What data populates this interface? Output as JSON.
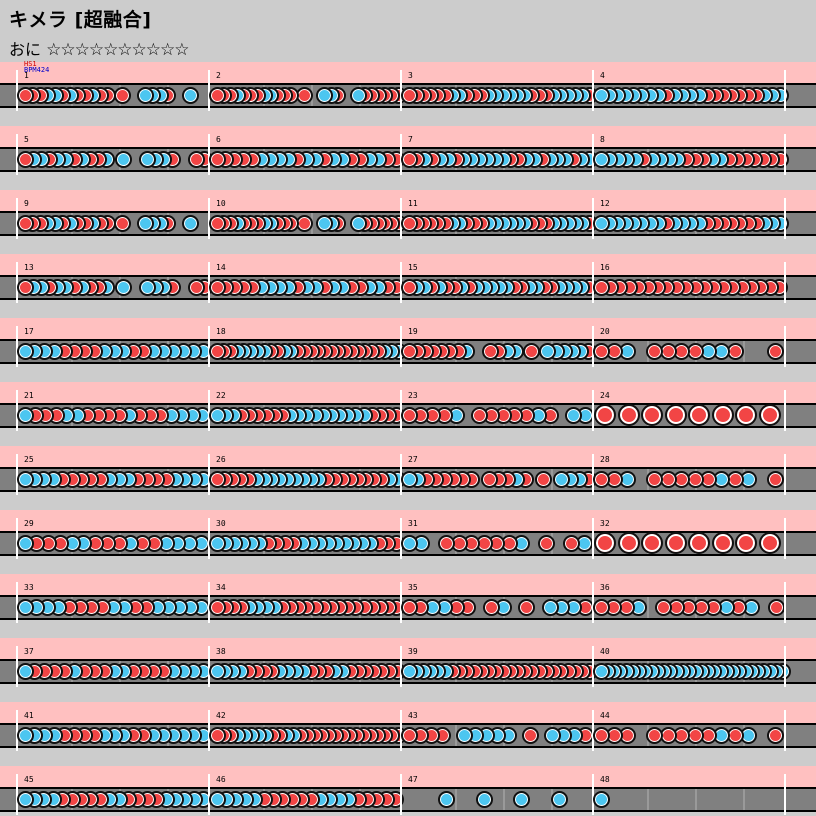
{
  "header": {
    "title": "キメラ [超融合]",
    "difficulty_label": "おに",
    "stars": "☆☆☆☆☆☆☆☆☆☆"
  },
  "chart_info": {
    "hs_label": "HS1",
    "bpm_label": "BPM424"
  },
  "chart_data": {
    "type": "taiko-chart",
    "measures_per_row": 4,
    "note_types": {
      "d": "don",
      "k": "ka",
      "D": "big-don",
      "K": "big-ka"
    },
    "colors": {
      "don": "#f24545",
      "ka": "#4cc6f0",
      "background": "#cccccc",
      "row": "#ffc0c0",
      "lane": "#808080",
      "bar_line": "#ffffff"
    },
    "measures": [
      {
        "n": "1",
        "notes": "dddkkdkddkdd_d__kkkd__k__"
      },
      {
        "n": "2",
        "notes": "dddkdddkkddd_d__kkd__kdddddd"
      },
      {
        "n": "3",
        "notes": "ddddddkkdddkkkkkkdddkkkkkd"
      },
      {
        "n": "4",
        "notes": "kkkkkkkkdkkkkdddddddkkk"
      },
      {
        "n": "5",
        "notes": "dkkdkkdkddk_k__kkkd__dd"
      },
      {
        "n": "6",
        "notes": "dddddkkkkdkkdkkddkkdd"
      },
      {
        "n": "7",
        "notes": "ddkdkkdkkkkkkddkkdkkkdkk"
      },
      {
        "n": "8",
        "notes": "kkkkkdkkkkdddkkddddddd"
      },
      {
        "n": "9",
        "notes": "dddkkdkddkdd_d__kkkd__k__"
      },
      {
        "n": "10",
        "notes": "dddkdddkkddd_d__kkd__kdddddd"
      },
      {
        "n": "11",
        "notes": "ddddddkkdddkkkkkkdddkkkkkd"
      },
      {
        "n": "12",
        "notes": "kkkkkkkkdkkkkdddddddkkk"
      },
      {
        "n": "13",
        "notes": "dkkdkkdkddk_k__kkkd__dd"
      },
      {
        "n": "14",
        "notes": "dddddkkkkdkkdkkddkkdd"
      },
      {
        "n": "15",
        "notes": "dkkdkddkdkkkkkddkkddkkkkd"
      },
      {
        "n": "16",
        "notes": "dddddddddddddddddddd"
      },
      {
        "n": "17",
        "notes": "kkkkddddkkkddkkkkkk"
      },
      {
        "n": "18",
        "notes": "dddkkkkkddkkdddddddddddddkkk"
      },
      {
        "n": "19",
        "notes": "dddddddk__ddkk_d_kkkkkd"
      },
      {
        "n": "20",
        "notes": "ddk_ddddkkd__d"
      },
      {
        "n": "21",
        "notes": "kdddkkddddkdddkkkk"
      },
      {
        "n": "22",
        "notes": "kkkddddddkkkkkkkkkkdddd"
      },
      {
        "n": "23",
        "notes": "ddddk_dddddkd_kk"
      },
      {
        "n": "24",
        "notes": "DDDDDDDD"
      },
      {
        "n": "25",
        "notes": "kkkkdddddkkkddddkkkk"
      },
      {
        "n": "26",
        "notes": "dddddkkkkkkkkkddddddddkk"
      },
      {
        "n": "27",
        "notes": "kkdddddd_dddkd_d_kkkd"
      },
      {
        "n": "28",
        "notes": "ddk_dddddkdk_d"
      },
      {
        "n": "29",
        "notes": "kdddkkdddkddkkkk"
      },
      {
        "n": "30",
        "notes": "kkkkkkddddkkkkkkkkkddd"
      },
      {
        "n": "31",
        "notes": "kk_ddddddk_d_dk"
      },
      {
        "n": "32",
        "notes": "DDDDDDDD"
      },
      {
        "n": "33",
        "notes": "kkkkddddkkddkkkkk"
      },
      {
        "n": "34",
        "notes": "ddddkkkkddddddddddddddd"
      },
      {
        "n": "35",
        "notes": "ddkkdd_dk_d_kkkd"
      },
      {
        "n": "36",
        "notes": "dddk_dddddkdk_d"
      },
      {
        "n": "37",
        "notes": "kddddkdddkkddddkkkk"
      },
      {
        "n": "38",
        "notes": "kkkkddddkkkkdddkkddddddd"
      },
      {
        "n": "39",
        "notes": "kkkkkkdddddddddddddddddddd"
      },
      {
        "n": "40",
        "notes": "kkkkkkkkkkkkkkkkkkkkkkkkkkkkkk"
      },
      {
        "n": "41",
        "notes": "kkkkddddkkkddkkkkkk"
      },
      {
        "n": "42",
        "notes": "dddkkkkkddkkddddddddddddddd"
      },
      {
        "n": "43",
        "notes": "dddd_kkkkk_d_kkkd"
      },
      {
        "n": "44",
        "notes": "ddd_dddddkdk_d"
      },
      {
        "n": "45",
        "notes": "kkkkdddddkkddddkkkkk"
      },
      {
        "n": "46",
        "notes": "kkkkkddddddkkkkddddd"
      },
      {
        "n": "47",
        "notes": "____k___k___k___k___"
      },
      {
        "n": "48",
        "notes": "k_________"
      }
    ]
  }
}
